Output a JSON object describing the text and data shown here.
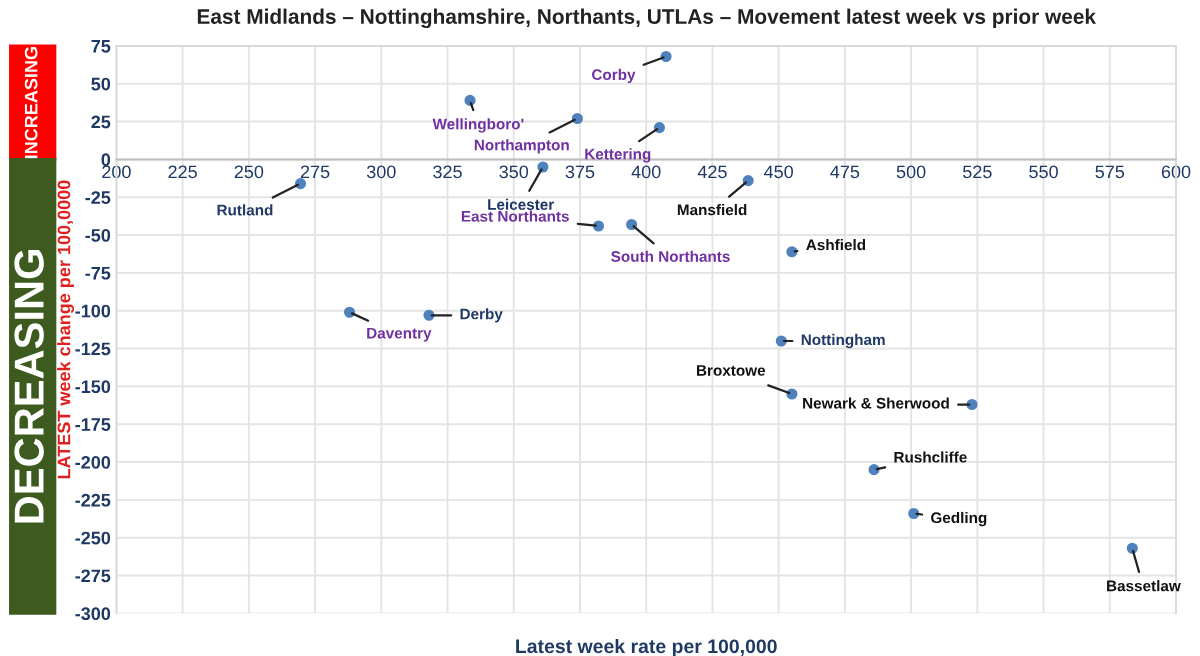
{
  "chart_data": {
    "type": "scatter",
    "title": "East Midlands – Nottinghamshire, Northants, UTLAs – Movement latest week vs prior week",
    "xlabel": "Latest week rate per 100,000",
    "ylabel": "LATEST week change per 100,0000",
    "x": [
      407.5,
      333.5,
      374,
      405,
      361,
      269.5,
      438.5,
      382,
      394.5,
      455,
      288,
      318,
      451,
      455,
      523,
      486,
      501,
      583.5
    ],
    "series": [
      {
        "color": "#4f81bd",
        "values": [
          68,
          39,
          27,
          21,
          -5,
          -16,
          -14,
          -44,
          -43,
          -61,
          -101,
          -103,
          -120,
          -155,
          -162,
          -205,
          -234,
          -257
        ]
      }
    ],
    "annotations": [
      {
        "text": "Corby",
        "x": 407.5,
        "y": 68
      },
      {
        "text": "Wellingboro'",
        "x": 333.5,
        "y": 39
      },
      {
        "text": "Northampton",
        "x": 374,
        "y": 27
      },
      {
        "text": "Kettering",
        "x": 405,
        "y": 21
      },
      {
        "text": "Leicester",
        "x": 361,
        "y": -5
      },
      {
        "text": "Rutland",
        "x": 269.5,
        "y": -16
      },
      {
        "text": "Mansfield",
        "x": 438.5,
        "y": -14
      },
      {
        "text": "East Northants",
        "x": 382,
        "y": -44
      },
      {
        "text": "South Northants",
        "x": 394.5,
        "y": -43
      },
      {
        "text": "Ashfield",
        "x": 455,
        "y": -61
      },
      {
        "text": "Daventry",
        "x": 288,
        "y": -101
      },
      {
        "text": "Derby",
        "x": 318,
        "y": -103
      },
      {
        "text": "Nottingham",
        "x": 451,
        "y": -120
      },
      {
        "text": "Broxtowe",
        "x": 455,
        "y": -155
      },
      {
        "text": "Newark & Sherwood",
        "x": 523,
        "y": -162
      },
      {
        "text": "Rushcliffe",
        "x": 486,
        "y": -205
      },
      {
        "text": "Gedling",
        "x": 501,
        "y": -234
      },
      {
        "text": "Bassetlaw",
        "x": 583.5,
        "y": -257
      },
      "INCREASING",
      "DECREASING"
    ],
    "xlim": [
      200,
      600
    ],
    "xticks": [
      200,
      225,
      250,
      275,
      300,
      325,
      350,
      375,
      400,
      425,
      450,
      475,
      500,
      525,
      550,
      575,
      600
    ],
    "ylim": [
      -300,
      75
    ],
    "yticks": [
      -300,
      -275,
      -250,
      -225,
      -200,
      -175,
      -150,
      -125,
      -100,
      -75,
      -50,
      -25,
      0,
      25,
      50,
      75
    ],
    "grid": true,
    "marker": "circle"
  }
}
